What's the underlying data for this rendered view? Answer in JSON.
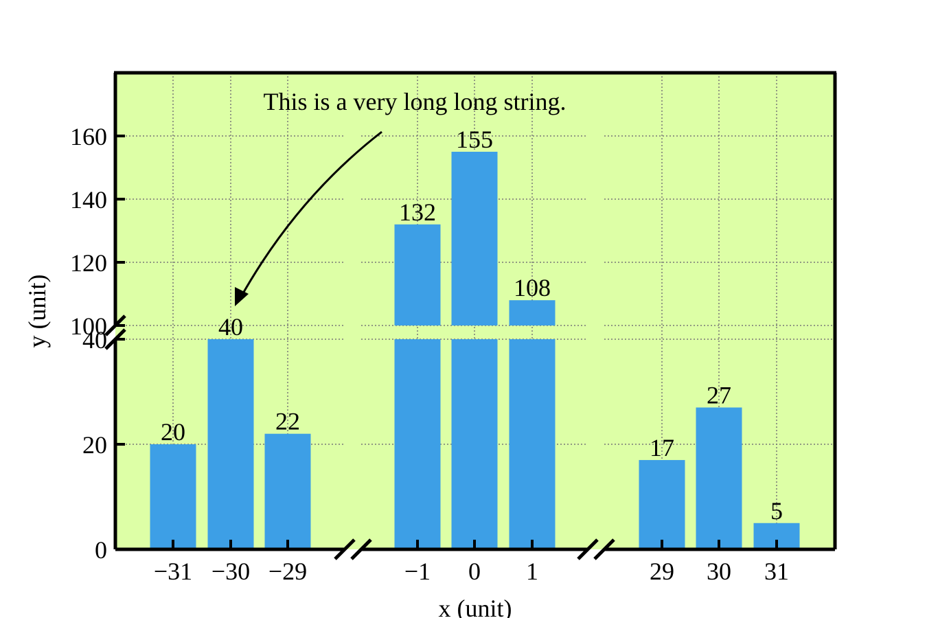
{
  "chart_data": {
    "type": "bar",
    "xlabel": "x (unit)",
    "ylabel": "y (unit)",
    "annotation": {
      "text": "This is a very long long string.",
      "points_to": {
        "x": "−30",
        "y": 40
      }
    },
    "background_color": "#ddffa6",
    "bar_color": "#3d9fe6",
    "grid": true,
    "broken_axes": true,
    "x_segments": [
      {
        "categories": [
          "−31",
          "−30",
          "−29"
        ],
        "values": [
          20,
          40,
          22
        ]
      },
      {
        "categories": [
          "−1",
          "0",
          "1"
        ],
        "values": [
          132,
          155,
          108
        ]
      },
      {
        "categories": [
          "29",
          "30",
          "31"
        ],
        "values": [
          17,
          27,
          5
        ]
      }
    ],
    "y_segments": [
      {
        "range": [
          0,
          40
        ],
        "ticks": [
          "0",
          "20",
          "40"
        ]
      },
      {
        "range": [
          100,
          180
        ],
        "ticks": [
          "100",
          "120",
          "140",
          "160"
        ]
      }
    ]
  }
}
